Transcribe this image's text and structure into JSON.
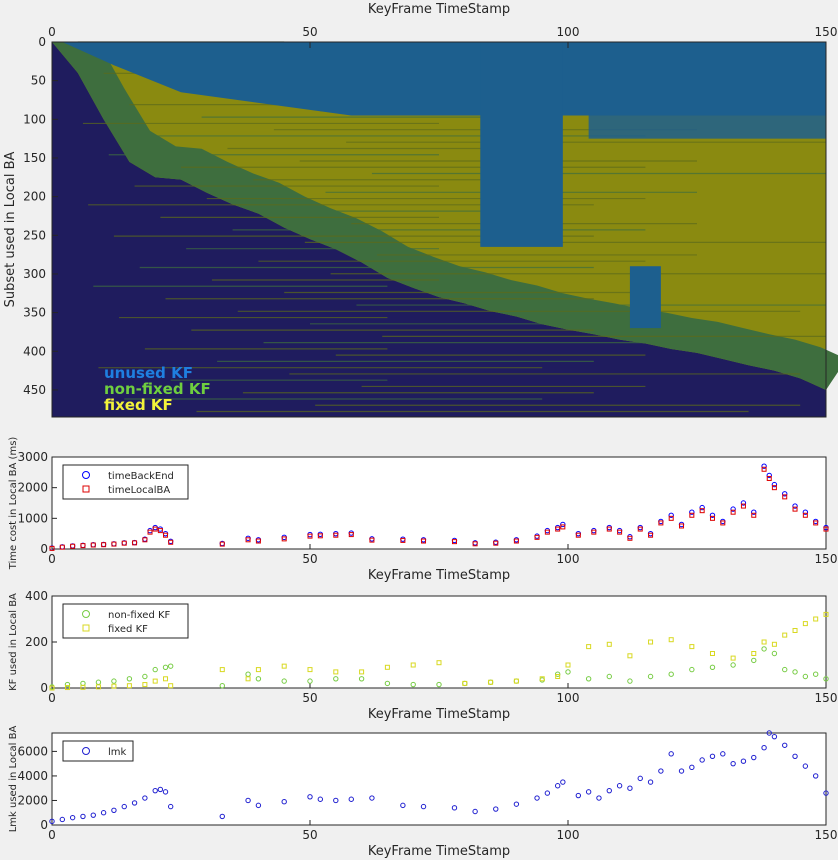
{
  "figure": {
    "overlay_labels": [
      {
        "text": "unused KF",
        "color": "#1f7fe0"
      },
      {
        "text": "non-fixed KF",
        "color": "#6fcf3f"
      },
      {
        "text": "fixed KF",
        "color": "#f2f23a"
      }
    ]
  },
  "colors": {
    "background": "#1f1c5e",
    "unused": "#1d5f8e",
    "nonfixed": "#3e6e3e",
    "fixed": "#8a8a10",
    "timeBackEnd": "#0000ff",
    "timeLocalBA": "#dd0000",
    "nonfixed_marker": "#77cc44",
    "fixed_marker": "#d8d820",
    "lmk": "#1f1fd0"
  },
  "chart_data": [
    {
      "type": "heatmap",
      "title": "",
      "xlabel": "KeyFrame TimeStamp",
      "ylabel": "Subset used in Local BA",
      "xlim": [
        0,
        150
      ],
      "ylim": [
        0,
        485
      ],
      "x_axis_position": "top",
      "y_reversed": true,
      "xticks": [
        0,
        50,
        100,
        150
      ],
      "yticks": [
        0,
        50,
        100,
        150,
        200,
        250,
        300,
        350,
        400,
        450
      ],
      "legend_position": "bottom-left",
      "boundary_curve": {
        "x": [
          0,
          5,
          10,
          15,
          20,
          25,
          30,
          35,
          40,
          45,
          50,
          55,
          60,
          65,
          70,
          75,
          80,
          85,
          90,
          95,
          100,
          105,
          110,
          115,
          120,
          125,
          130,
          135,
          140,
          145,
          150
        ],
        "y": [
          0,
          40,
          100,
          155,
          175,
          178,
          195,
          210,
          222,
          240,
          255,
          268,
          285,
          305,
          318,
          330,
          338,
          348,
          355,
          365,
          372,
          378,
          385,
          390,
          397,
          402,
          410,
          418,
          425,
          435,
          450
        ]
      },
      "unused_block": {
        "x": [
          83,
          99
        ],
        "y": [
          0,
          265
        ]
      },
      "unused_block_2": {
        "x": [
          112,
          118
        ],
        "y": [
          290,
          370
        ]
      },
      "unused_top_band": {
        "x": [
          2,
          150
        ],
        "y": [
          0,
          95
        ]
      }
    },
    {
      "type": "scatter",
      "xlabel": "KeyFrame TimeStamp",
      "ylabel": "Time cost in Local BA (ms)",
      "xlim": [
        0,
        150
      ],
      "ylim": [
        0,
        3000
      ],
      "xticks": [
        0,
        50,
        100,
        150
      ],
      "yticks": [
        0,
        1000,
        2000,
        3000
      ],
      "legend_position": "top-left",
      "series": [
        {
          "name": "timeBackEnd",
          "marker": "circle",
          "x": [
            0,
            2,
            4,
            6,
            8,
            10,
            12,
            14,
            16,
            18,
            19,
            20,
            21,
            22,
            23,
            33,
            38,
            40,
            45,
            50,
            52,
            55,
            58,
            62,
            68,
            72,
            78,
            82,
            86,
            90,
            94,
            96,
            98,
            99,
            102,
            105,
            108,
            110,
            112,
            114,
            116,
            118,
            120,
            122,
            124,
            126,
            128,
            130,
            132,
            134,
            136,
            138,
            139,
            140,
            142,
            144,
            146,
            148,
            150
          ],
          "y": [
            30,
            70,
            100,
            120,
            140,
            150,
            170,
            200,
            210,
            320,
            600,
            700,
            650,
            500,
            250,
            180,
            350,
            300,
            380,
            470,
            480,
            500,
            520,
            330,
            320,
            300,
            280,
            200,
            220,
            300,
            420,
            600,
            700,
            800,
            500,
            600,
            700,
            600,
            400,
            700,
            500,
            900,
            1100,
            800,
            1200,
            1350,
            1100,
            900,
            1300,
            1500,
            1200,
            2700,
            2400,
            2100,
            1800,
            1400,
            1200,
            900,
            700
          ]
        },
        {
          "name": "timeLocalBA",
          "marker": "square",
          "x": [
            0,
            2,
            4,
            6,
            8,
            10,
            12,
            14,
            16,
            18,
            19,
            20,
            21,
            22,
            23,
            33,
            38,
            40,
            45,
            50,
            52,
            55,
            58,
            62,
            68,
            72,
            78,
            82,
            86,
            90,
            94,
            96,
            98,
            99,
            102,
            105,
            108,
            110,
            112,
            114,
            116,
            118,
            120,
            122,
            124,
            126,
            128,
            130,
            132,
            134,
            136,
            138,
            139,
            140,
            142,
            144,
            146,
            148,
            150
          ],
          "y": [
            20,
            60,
            90,
            110,
            130,
            140,
            160,
            190,
            200,
            300,
            550,
            650,
            600,
            450,
            220,
            160,
            300,
            260,
            330,
            420,
            430,
            450,
            470,
            290,
            280,
            260,
            240,
            170,
            190,
            260,
            380,
            550,
            650,
            720,
            450,
            550,
            650,
            550,
            350,
            650,
            450,
            850,
            1000,
            750,
            1100,
            1250,
            1000,
            850,
            1200,
            1400,
            1100,
            2600,
            2300,
            2000,
            1700,
            1300,
            1100,
            850,
            650
          ]
        }
      ]
    },
    {
      "type": "scatter",
      "xlabel": "KeyFrame TimeStamp",
      "ylabel": "KF used in Local BA",
      "xlim": [
        0,
        150
      ],
      "ylim": [
        0,
        400
      ],
      "xticks": [
        0,
        50,
        100,
        150
      ],
      "yticks": [
        0,
        200,
        400
      ],
      "legend_position": "top-left",
      "series": [
        {
          "name": "non-fixed KF",
          "marker": "circle",
          "x": [
            0,
            3,
            6,
            9,
            12,
            15,
            18,
            20,
            22,
            23,
            33,
            38,
            40,
            45,
            50,
            55,
            60,
            65,
            70,
            75,
            80,
            85,
            90,
            95,
            98,
            100,
            104,
            108,
            112,
            116,
            120,
            124,
            128,
            132,
            136,
            138,
            140,
            142,
            144,
            146,
            148,
            150
          ],
          "y": [
            5,
            15,
            20,
            25,
            30,
            40,
            50,
            80,
            90,
            95,
            10,
            60,
            40,
            30,
            30,
            40,
            40,
            20,
            15,
            15,
            20,
            25,
            30,
            35,
            60,
            70,
            40,
            50,
            30,
            50,
            60,
            80,
            90,
            100,
            120,
            170,
            150,
            80,
            70,
            50,
            60,
            40
          ]
        },
        {
          "name": "fixed KF",
          "marker": "square",
          "x": [
            0,
            3,
            6,
            9,
            12,
            15,
            18,
            20,
            22,
            23,
            33,
            38,
            40,
            45,
            50,
            55,
            60,
            65,
            70,
            75,
            80,
            85,
            90,
            95,
            98,
            100,
            104,
            108,
            112,
            116,
            120,
            124,
            128,
            132,
            136,
            138,
            140,
            142,
            144,
            146,
            148,
            150
          ],
          "y": [
            0,
            2,
            3,
            5,
            8,
            10,
            15,
            30,
            40,
            10,
            80,
            40,
            80,
            95,
            80,
            70,
            70,
            90,
            100,
            110,
            20,
            25,
            30,
            40,
            50,
            100,
            180,
            190,
            140,
            200,
            210,
            180,
            150,
            130,
            150,
            200,
            190,
            230,
            250,
            280,
            300,
            320
          ]
        }
      ]
    },
    {
      "type": "scatter",
      "xlabel": "KeyFrame TimeStamp",
      "ylabel": "Lmk used in Local BA",
      "xlim": [
        0,
        150
      ],
      "ylim": [
        0,
        7500
      ],
      "xticks": [
        0,
        50,
        100,
        150
      ],
      "yticks": [
        0,
        2000,
        4000,
        6000
      ],
      "legend_position": "top-left",
      "series": [
        {
          "name": "lmk",
          "marker": "circle",
          "x": [
            0,
            2,
            4,
            6,
            8,
            10,
            12,
            14,
            16,
            18,
            20,
            21,
            22,
            23,
            33,
            38,
            40,
            45,
            50,
            52,
            55,
            58,
            62,
            68,
            72,
            78,
            82,
            86,
            90,
            94,
            96,
            98,
            99,
            102,
            104,
            106,
            108,
            110,
            112,
            114,
            116,
            118,
            120,
            122,
            124,
            126,
            128,
            130,
            132,
            134,
            136,
            138,
            139,
            140,
            142,
            144,
            146,
            148,
            150
          ],
          "y": [
            300,
            450,
            600,
            700,
            800,
            1000,
            1200,
            1500,
            1800,
            2200,
            2800,
            2900,
            2700,
            1500,
            700,
            2000,
            1600,
            1900,
            2300,
            2100,
            2000,
            2100,
            2200,
            1600,
            1500,
            1400,
            1100,
            1300,
            1700,
            2200,
            2600,
            3200,
            3500,
            2400,
            2700,
            2200,
            2800,
            3200,
            3000,
            3800,
            3500,
            4400,
            5800,
            4400,
            4700,
            5300,
            5600,
            5800,
            5000,
            5200,
            5500,
            6300,
            7500,
            7200,
            6500,
            5600,
            4800,
            4000,
            2600
          ]
        }
      ]
    }
  ]
}
